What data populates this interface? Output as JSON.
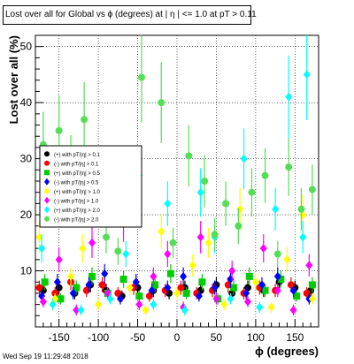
{
  "chart_data": {
    "type": "scatter",
    "title": "Lost over all for Global vs ϕ (degrees) at | η | <= 1.0 at pT > 0.11",
    "xlabel": "ϕ (degrees)",
    "ylabel": "Lost over all (%)",
    "xlim": [
      -180,
      180
    ],
    "ylim": [
      0,
      52
    ],
    "xticks": [
      -150,
      -100,
      -50,
      0,
      50,
      100,
      150
    ],
    "yticks": [
      10,
      20,
      30,
      40,
      50
    ],
    "grid": true,
    "legend_position": "left-middle",
    "series": [
      {
        "name": "(+) with pT/|η| > 0.1",
        "color": "#000000",
        "marker": "circle",
        "points": [
          [
            -170,
            6.5
          ],
          [
            -150,
            7.0
          ],
          [
            -130,
            6.0
          ],
          [
            -110,
            7.5
          ],
          [
            -90,
            6.5
          ],
          [
            -70,
            5.5
          ],
          [
            -50,
            7.0
          ],
          [
            -30,
            6.5
          ],
          [
            -10,
            6.0
          ],
          [
            10,
            7.0
          ],
          [
            30,
            6.5
          ],
          [
            50,
            7.5
          ],
          [
            70,
            6.0
          ],
          [
            90,
            7.0
          ],
          [
            110,
            6.5
          ],
          [
            130,
            8.0
          ],
          [
            150,
            7.0
          ],
          [
            170,
            6.5
          ]
        ]
      },
      {
        "name": "(-) with pT/|η| > 0.1",
        "color": "#ff0000",
        "marker": "circle",
        "points": [
          [
            -175,
            7.0
          ],
          [
            -155,
            6.0
          ],
          [
            -135,
            8.0
          ],
          [
            -115,
            6.5
          ],
          [
            -95,
            7.5
          ],
          [
            -75,
            6.0
          ],
          [
            -55,
            7.0
          ],
          [
            -35,
            5.5
          ],
          [
            -15,
            6.5
          ],
          [
            5,
            7.0
          ],
          [
            25,
            6.0
          ],
          [
            45,
            6.5
          ],
          [
            65,
            7.5
          ],
          [
            85,
            6.0
          ],
          [
            105,
            7.0
          ],
          [
            125,
            6.5
          ],
          [
            145,
            7.5
          ],
          [
            165,
            6.0
          ]
        ]
      },
      {
        "name": "(+) with pT/|η| > 0.5",
        "color": "#00cc00",
        "marker": "square",
        "points": [
          [
            -168,
            8.0
          ],
          [
            -148,
            5.0
          ],
          [
            -128,
            7.0
          ],
          [
            -108,
            9.0
          ],
          [
            -88,
            6.0
          ],
          [
            -68,
            8.5
          ],
          [
            -48,
            5.5
          ],
          [
            -28,
            7.5
          ],
          [
            -8,
            9.5
          ],
          [
            12,
            6.0
          ],
          [
            32,
            8.0
          ],
          [
            52,
            5.0
          ],
          [
            72,
            7.0
          ],
          [
            92,
            9.0
          ],
          [
            112,
            6.5
          ],
          [
            132,
            8.5
          ],
          [
            152,
            5.5
          ],
          [
            172,
            7.5
          ]
        ]
      },
      {
        "name": "(-) with pT/|η| > 0.5",
        "color": "#0000ff",
        "marker": "diamond",
        "points": [
          [
            -172,
            5.5
          ],
          [
            -152,
            8.0
          ],
          [
            -132,
            6.0
          ],
          [
            -112,
            7.5
          ],
          [
            -92,
            9.5
          ],
          [
            -72,
            5.0
          ],
          [
            -52,
            8.0
          ],
          [
            -32,
            6.5
          ],
          [
            -12,
            7.0
          ],
          [
            8,
            9.0
          ],
          [
            28,
            5.5
          ],
          [
            48,
            7.0
          ],
          [
            68,
            8.5
          ],
          [
            88,
            6.0
          ],
          [
            108,
            7.5
          ],
          [
            128,
            9.0
          ],
          [
            148,
            6.5
          ],
          [
            168,
            5.0
          ]
        ]
      },
      {
        "name": "(+) with pT/|η| > 1.0",
        "color": "#ffff00",
        "marker": "diamond",
        "points": [
          [
            -175,
            16.0
          ],
          [
            -155,
            5.0
          ],
          [
            -135,
            9.0
          ],
          [
            -120,
            14.0
          ],
          [
            -100,
            4.0
          ],
          [
            -80,
            22.0
          ],
          [
            -60,
            7.0
          ],
          [
            -40,
            3.0
          ],
          [
            -20,
            17.0
          ],
          [
            0,
            6.0
          ],
          [
            20,
            11.0
          ],
          [
            40,
            15.0
          ],
          [
            60,
            4.0
          ],
          [
            80,
            21.0
          ],
          [
            100,
            8.0
          ],
          [
            120,
            3.5
          ],
          [
            140,
            12.0
          ],
          [
            160,
            20.0
          ],
          [
            172,
            5.0
          ]
        ]
      },
      {
        "name": "(-) with pT/|η| > 1.0",
        "color": "#ff00ff",
        "marker": "diamond",
        "points": [
          [
            -170,
            4.5
          ],
          [
            -150,
            12.0
          ],
          [
            -128,
            3.0
          ],
          [
            -108,
            15.0
          ],
          [
            -88,
            6.0
          ],
          [
            -68,
            18.5
          ],
          [
            -48,
            4.0
          ],
          [
            -30,
            9.0
          ],
          [
            -12,
            13.0
          ],
          [
            8,
            3.5
          ],
          [
            30,
            16.0
          ],
          [
            50,
            5.0
          ],
          [
            70,
            10.0
          ],
          [
            90,
            4.5
          ],
          [
            110,
            14.0
          ],
          [
            128,
            6.5
          ],
          [
            148,
            3.0
          ],
          [
            168,
            11.0
          ]
        ]
      },
      {
        "name": "(+) with pT/|η| > 2.0",
        "color": "#00ffff",
        "marker": "diamond",
        "points": [
          [
            -172,
            14.0
          ],
          [
            -158,
            4.0
          ],
          [
            -140,
            23.0
          ],
          [
            -122,
            3.0
          ],
          [
            -104,
            26.0
          ],
          [
            -85,
            5.0
          ],
          [
            -65,
            13.0
          ],
          [
            -48,
            27.0
          ],
          [
            -30,
            4.0
          ],
          [
            -12,
            22.0
          ],
          [
            10,
            3.0
          ],
          [
            30,
            24.0
          ],
          [
            48,
            16.0
          ],
          [
            68,
            5.0
          ],
          [
            85,
            30.0
          ],
          [
            105,
            3.5
          ],
          [
            125,
            21.0
          ],
          [
            142,
            41.0
          ],
          [
            160,
            16.0
          ],
          [
            165,
            45.0
          ]
        ]
      },
      {
        "name": "(-) with pT/|η| > 2.0",
        "color": "#55dd55",
        "marker": "circle",
        "points": [
          [
            -170,
            32.5
          ],
          [
            -150,
            35.0
          ],
          [
            -135,
            29.0
          ],
          [
            -118,
            37.0
          ],
          [
            -105,
            23.5
          ],
          [
            -90,
            16.0
          ],
          [
            -75,
            13.5
          ],
          [
            -58,
            22.0
          ],
          [
            -45,
            44.5
          ],
          [
            -20,
            40.0
          ],
          [
            -5,
            15.0
          ],
          [
            15,
            30.5
          ],
          [
            35,
            26.0
          ],
          [
            48,
            16.5
          ],
          [
            62,
            22.0
          ],
          [
            78,
            18.0
          ],
          [
            95,
            24.0
          ],
          [
            112,
            27.0
          ],
          [
            128,
            13.0
          ],
          [
            142,
            28.5
          ],
          [
            158,
            21.0
          ],
          [
            172,
            24.5
          ]
        ]
      }
    ]
  },
  "timestamp": "Wed Sep 19 11:29:48 2018"
}
